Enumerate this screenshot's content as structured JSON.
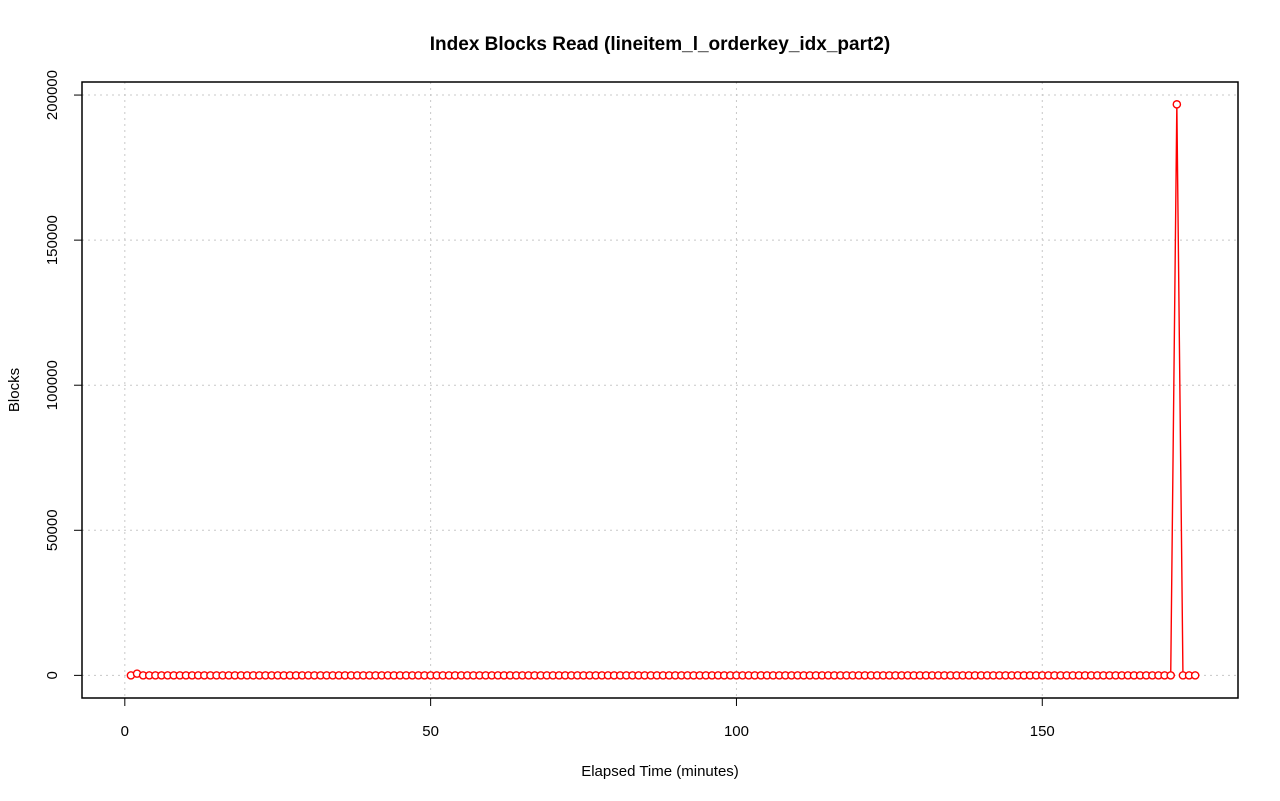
{
  "chart_data": {
    "type": "line",
    "title": "Index Blocks Read (lineitem_l_orderkey_idx_part2)",
    "xlabel": "Elapsed Time (minutes)",
    "ylabel": "Blocks",
    "xlim": [
      -7,
      182
    ],
    "ylim": [
      -7800,
      204500
    ],
    "x_ticks": [
      0,
      50,
      100,
      150
    ],
    "y_ticks": [
      0,
      50000,
      100000,
      150000,
      200000
    ],
    "grid": true,
    "series": [
      {
        "name": "Blocks",
        "color": "#ff0000",
        "x_start": 1,
        "x_step": 1,
        "values": [
          0,
          600,
          0,
          0,
          0,
          0,
          0,
          0,
          0,
          0,
          0,
          0,
          0,
          0,
          0,
          0,
          0,
          0,
          0,
          0,
          0,
          0,
          0,
          0,
          0,
          0,
          0,
          0,
          0,
          0,
          0,
          0,
          0,
          0,
          0,
          0,
          0,
          0,
          0,
          0,
          0,
          0,
          0,
          0,
          0,
          0,
          0,
          0,
          0,
          0,
          0,
          0,
          0,
          0,
          0,
          0,
          0,
          0,
          0,
          0,
          0,
          0,
          0,
          0,
          0,
          0,
          0,
          0,
          0,
          0,
          0,
          0,
          0,
          0,
          0,
          0,
          0,
          0,
          0,
          0,
          0,
          0,
          0,
          0,
          0,
          0,
          0,
          0,
          0,
          0,
          0,
          0,
          0,
          0,
          0,
          0,
          0,
          0,
          0,
          0,
          0,
          0,
          0,
          0,
          0,
          0,
          0,
          0,
          0,
          0,
          0,
          0,
          0,
          0,
          0,
          0,
          0,
          0,
          0,
          0,
          0,
          0,
          0,
          0,
          0,
          0,
          0,
          0,
          0,
          0,
          0,
          0,
          0,
          0,
          0,
          0,
          0,
          0,
          0,
          0,
          0,
          0,
          0,
          0,
          0,
          0,
          0,
          0,
          0,
          0,
          0,
          0,
          0,
          0,
          0,
          0,
          0,
          0,
          0,
          0,
          0,
          0,
          0,
          0,
          0,
          0,
          0,
          0,
          0,
          0,
          0,
          196800,
          0,
          0,
          0
        ]
      }
    ]
  }
}
